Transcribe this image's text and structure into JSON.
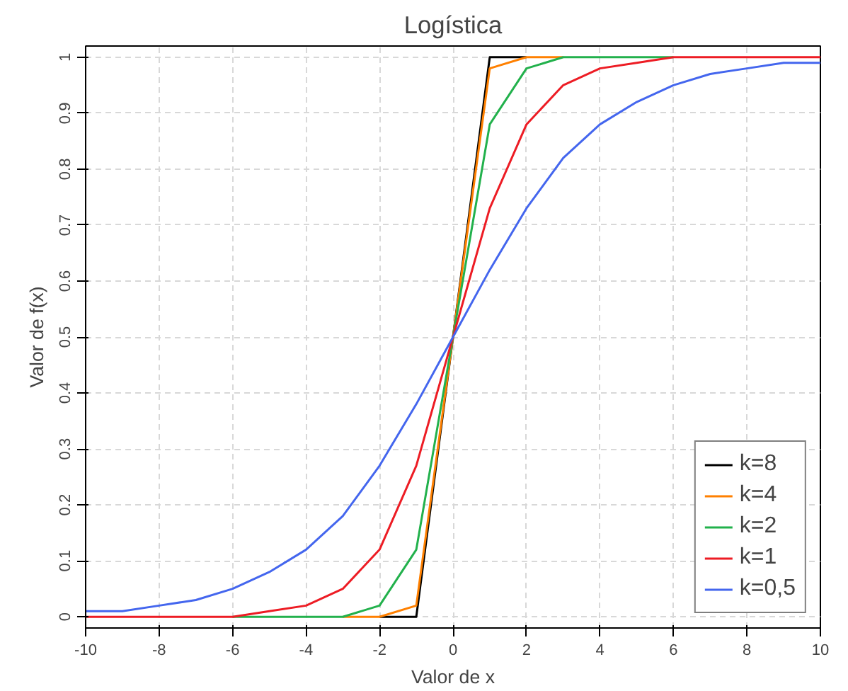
{
  "chart_data": {
    "type": "line",
    "title": "Logística",
    "xlabel": "Valor de x",
    "ylabel": "Valor de f(x)",
    "x": [
      -10,
      -9,
      -8,
      -7,
      -6,
      -5,
      -4,
      -3,
      -2,
      -1,
      0,
      1,
      2,
      3,
      4,
      5,
      6,
      7,
      8,
      9,
      10
    ],
    "series": [
      {
        "name": "k=8",
        "color": "#000000",
        "values": [
          null,
          null,
          null,
          null,
          null,
          null,
          null,
          null,
          0,
          0,
          0.5,
          1,
          1,
          null,
          null,
          null,
          null,
          null,
          null,
          null,
          null
        ]
      },
      {
        "name": "k=4",
        "color": "#ff8000",
        "values": [
          null,
          null,
          null,
          null,
          null,
          null,
          null,
          0,
          0,
          0.02,
          0.5,
          0.98,
          1,
          1,
          null,
          null,
          null,
          null,
          null,
          null,
          null
        ]
      },
      {
        "name": "k=2",
        "color": "#22b14c",
        "values": [
          null,
          null,
          null,
          null,
          0,
          0,
          0,
          0,
          0.02,
          0.12,
          0.5,
          0.88,
          0.98,
          1,
          1,
          1,
          1,
          null,
          null,
          null,
          null
        ]
      },
      {
        "name": "k=1",
        "color": "#ed1c24",
        "values": [
          0,
          0,
          0,
          0,
          0,
          0.01,
          0.02,
          0.05,
          0.12,
          0.27,
          0.5,
          0.73,
          0.88,
          0.95,
          0.98,
          0.99,
          1,
          1,
          1,
          1,
          1
        ]
      },
      {
        "name": "k=0,5",
        "color": "#4466ee",
        "values": [
          0.01,
          0.01,
          0.02,
          0.03,
          0.05,
          0.08,
          0.12,
          0.18,
          0.27,
          0.38,
          0.5,
          0.62,
          0.73,
          0.82,
          0.88,
          0.92,
          0.95,
          0.97,
          0.98,
          0.99,
          0.99
        ]
      }
    ],
    "xlim": [
      -10,
      10
    ],
    "ylim": [
      -0.02,
      1.02
    ],
    "xticks": [
      -10,
      -8,
      -6,
      -4,
      -2,
      0,
      2,
      4,
      6,
      8,
      10
    ],
    "yticks": [
      0,
      0.1,
      0.2,
      0.3,
      0.4,
      0.5,
      0.6,
      0.7,
      0.8,
      0.9,
      1
    ],
    "grid": true,
    "legend": "bottom right",
    "line_style": "solid",
    "marker": "none"
  }
}
